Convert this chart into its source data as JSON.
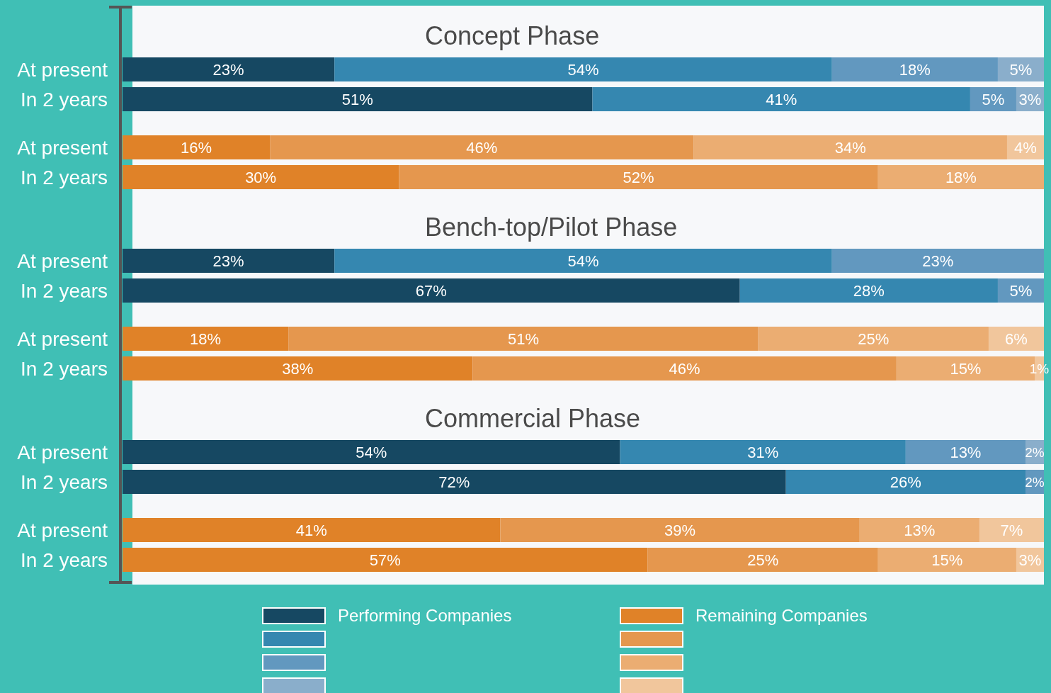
{
  "chart_data": [
    {
      "type": "bar",
      "orientation": "horizontal",
      "stacked": true,
      "title": "Concept Phase",
      "categories": [
        "At present",
        "In 2 years",
        "At present",
        "In 2 years"
      ],
      "xlim": [
        0,
        100
      ],
      "tick_labels": "y",
      "series": [
        {
          "color": "#164862",
          "values": [
            23,
            51,
            null,
            null
          ],
          "value_labels": [
            "23%",
            "51%",
            null,
            null
          ]
        },
        {
          "color": "#3587b0",
          "values": [
            54,
            41,
            null,
            null
          ],
          "value_labels": [
            "54%",
            "41%",
            null,
            null
          ]
        },
        {
          "color": "#6298bf",
          "values": [
            18,
            5,
            null,
            null
          ],
          "value_labels": [
            "18%",
            "5%",
            null,
            null
          ]
        },
        {
          "color": "#8aaecb",
          "values": [
            5,
            3,
            null,
            null
          ],
          "value_labels": [
            "5%",
            "3%",
            null,
            null
          ]
        },
        {
          "color": "#e08228",
          "values": [
            null,
            null,
            16,
            30
          ],
          "value_labels": [
            null,
            null,
            "16%",
            "30%"
          ]
        },
        {
          "color": "#e5974e",
          "values": [
            null,
            null,
            46,
            52
          ],
          "value_labels": [
            null,
            null,
            "46%",
            "52%"
          ]
        },
        {
          "color": "#ebad72",
          "values": [
            null,
            null,
            34,
            18
          ],
          "value_labels": [
            null,
            null,
            "34%",
            "18%"
          ]
        },
        {
          "color": "#f1c69c",
          "values": [
            null,
            null,
            4,
            null
          ],
          "value_labels": [
            null,
            null,
            "4%",
            null
          ]
        }
      ]
    },
    {
      "type": "bar",
      "orientation": "horizontal",
      "stacked": true,
      "title": "Bench-top/Pilot Phase",
      "categories": [
        "At present",
        "In 2 years",
        "At present",
        "In 2 years"
      ],
      "xlim": [
        0,
        100
      ],
      "tick_labels": "y",
      "series": [
        {
          "color": "#164862",
          "values": [
            23,
            67,
            null,
            null
          ],
          "value_labels": [
            "23%",
            "67%",
            null,
            null
          ]
        },
        {
          "color": "#3587b0",
          "values": [
            54,
            28,
            null,
            null
          ],
          "value_labels": [
            "54%",
            "28%",
            null,
            null
          ]
        },
        {
          "color": "#6298bf",
          "values": [
            23,
            5,
            null,
            null
          ],
          "value_labels": [
            "23%",
            "5%",
            null,
            null
          ]
        },
        {
          "color": "#e08228",
          "values": [
            null,
            null,
            18,
            38
          ],
          "value_labels": [
            null,
            null,
            "18%",
            "38%"
          ]
        },
        {
          "color": "#e5974e",
          "values": [
            null,
            null,
            51,
            46
          ],
          "value_labels": [
            null,
            null,
            "51%",
            "46%"
          ]
        },
        {
          "color": "#ebad72",
          "values": [
            null,
            null,
            25,
            15
          ],
          "value_labels": [
            null,
            null,
            "25%",
            "15%"
          ]
        },
        {
          "color": "#f1c69c",
          "values": [
            null,
            null,
            6,
            1
          ],
          "value_labels": [
            null,
            null,
            "6%",
            "1%"
          ]
        }
      ]
    },
    {
      "type": "bar",
      "orientation": "horizontal",
      "stacked": true,
      "title": "Commercial Phase",
      "categories": [
        "At present",
        "In 2 years",
        "At present",
        "In 2 years"
      ],
      "xlim": [
        0,
        100
      ],
      "tick_labels": "y",
      "legend": "bottom",
      "series": [
        {
          "name": "Performing Companies",
          "color": "#164862",
          "values": [
            54,
            72,
            null,
            null
          ],
          "value_labels": [
            "54%",
            "72%",
            null,
            null
          ]
        },
        {
          "color": "#3587b0",
          "values": [
            31,
            26,
            null,
            null
          ],
          "value_labels": [
            "31%",
            "26%",
            null,
            null
          ]
        },
        {
          "color": "#6298bf",
          "values": [
            13,
            2,
            null,
            null
          ],
          "value_labels": [
            "13%",
            "2%",
            null,
            null
          ]
        },
        {
          "color": "#8aaecb",
          "values": [
            2,
            null,
            null,
            null
          ],
          "value_labels": [
            "2%",
            null,
            null,
            null
          ]
        },
        {
          "name": "Remaining Companies",
          "color": "#e08228",
          "values": [
            null,
            null,
            41,
            57
          ],
          "value_labels": [
            null,
            null,
            "41%",
            "57%"
          ]
        },
        {
          "color": "#e5974e",
          "values": [
            null,
            null,
            39,
            25
          ],
          "value_labels": [
            null,
            null,
            "39%",
            "25%"
          ]
        },
        {
          "color": "#ebad72",
          "values": [
            null,
            null,
            13,
            15
          ],
          "value_labels": [
            null,
            null,
            "13%",
            "15%"
          ]
        },
        {
          "color": "#f1c69c",
          "values": [
            null,
            null,
            7,
            3
          ],
          "value_labels": [
            null,
            null,
            "7%",
            "3%"
          ]
        }
      ]
    }
  ]
}
